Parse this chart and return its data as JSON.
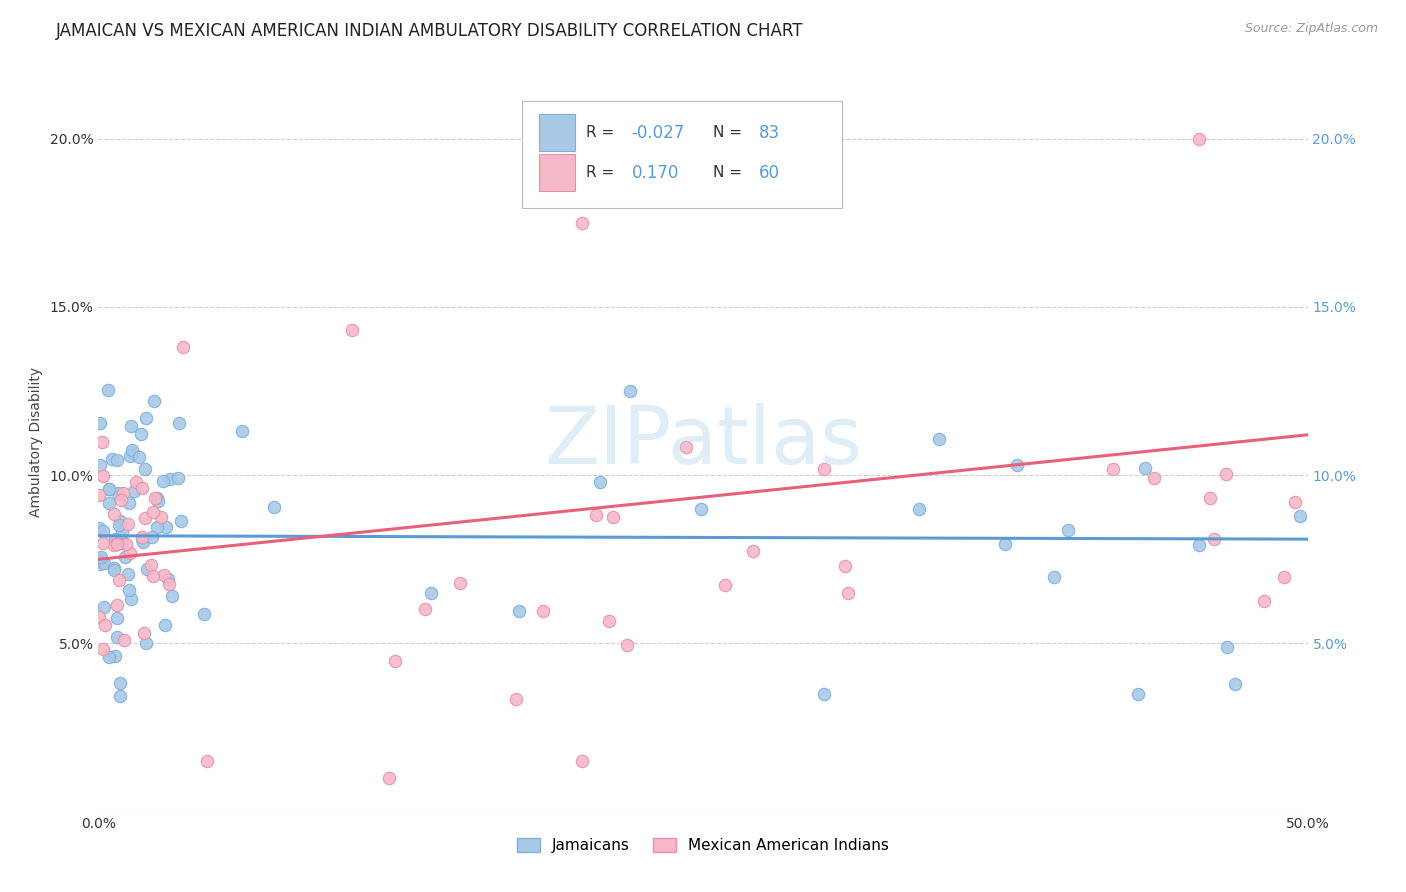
{
  "title": "JAMAICAN VS MEXICAN AMERICAN INDIAN AMBULATORY DISABILITY CORRELATION CHART",
  "source": "Source: ZipAtlas.com",
  "ylabel": "Ambulatory Disability",
  "xlim": [
    0.0,
    0.5
  ],
  "ylim": [
    0.0,
    0.22
  ],
  "xtick_vals": [
    0.0,
    0.1,
    0.2,
    0.3,
    0.4,
    0.5
  ],
  "xticklabels": [
    "0.0%",
    "",
    "",
    "",
    "",
    "50.0%"
  ],
  "ytick_vals": [
    0.0,
    0.05,
    0.1,
    0.15,
    0.2
  ],
  "yticklabels_left": [
    "",
    "5.0%",
    "10.0%",
    "15.0%",
    "20.0%"
  ],
  "yticklabels_right": [
    "",
    "5.0%",
    "10.0%",
    "15.0%",
    "20.0%"
  ],
  "blue_fill": "#A8C8E8",
  "blue_edge": "#7EB0D8",
  "pink_fill": "#F4B8C8",
  "pink_edge": "#E890A8",
  "blue_line": "#5B9BD5",
  "pink_line": "#E8607A",
  "r_blue": -0.027,
  "n_blue": 83,
  "r_pink": 0.17,
  "n_pink": 60,
  "watermark_text": "ZIPatlas",
  "legend_label_blue": "Jamaicans",
  "legend_label_pink": "Mexican American Indians",
  "grid_color": "#BBBBBB",
  "bg_color": "#FFFFFF",
  "right_axis_color": "#5B9BD5",
  "title_fontsize": 12,
  "tick_fontsize": 10,
  "axis_label_fontsize": 10,
  "blue_trend_start_y": 0.082,
  "blue_trend_end_y": 0.081,
  "pink_trend_start_y": 0.075,
  "pink_trend_end_y": 0.112
}
